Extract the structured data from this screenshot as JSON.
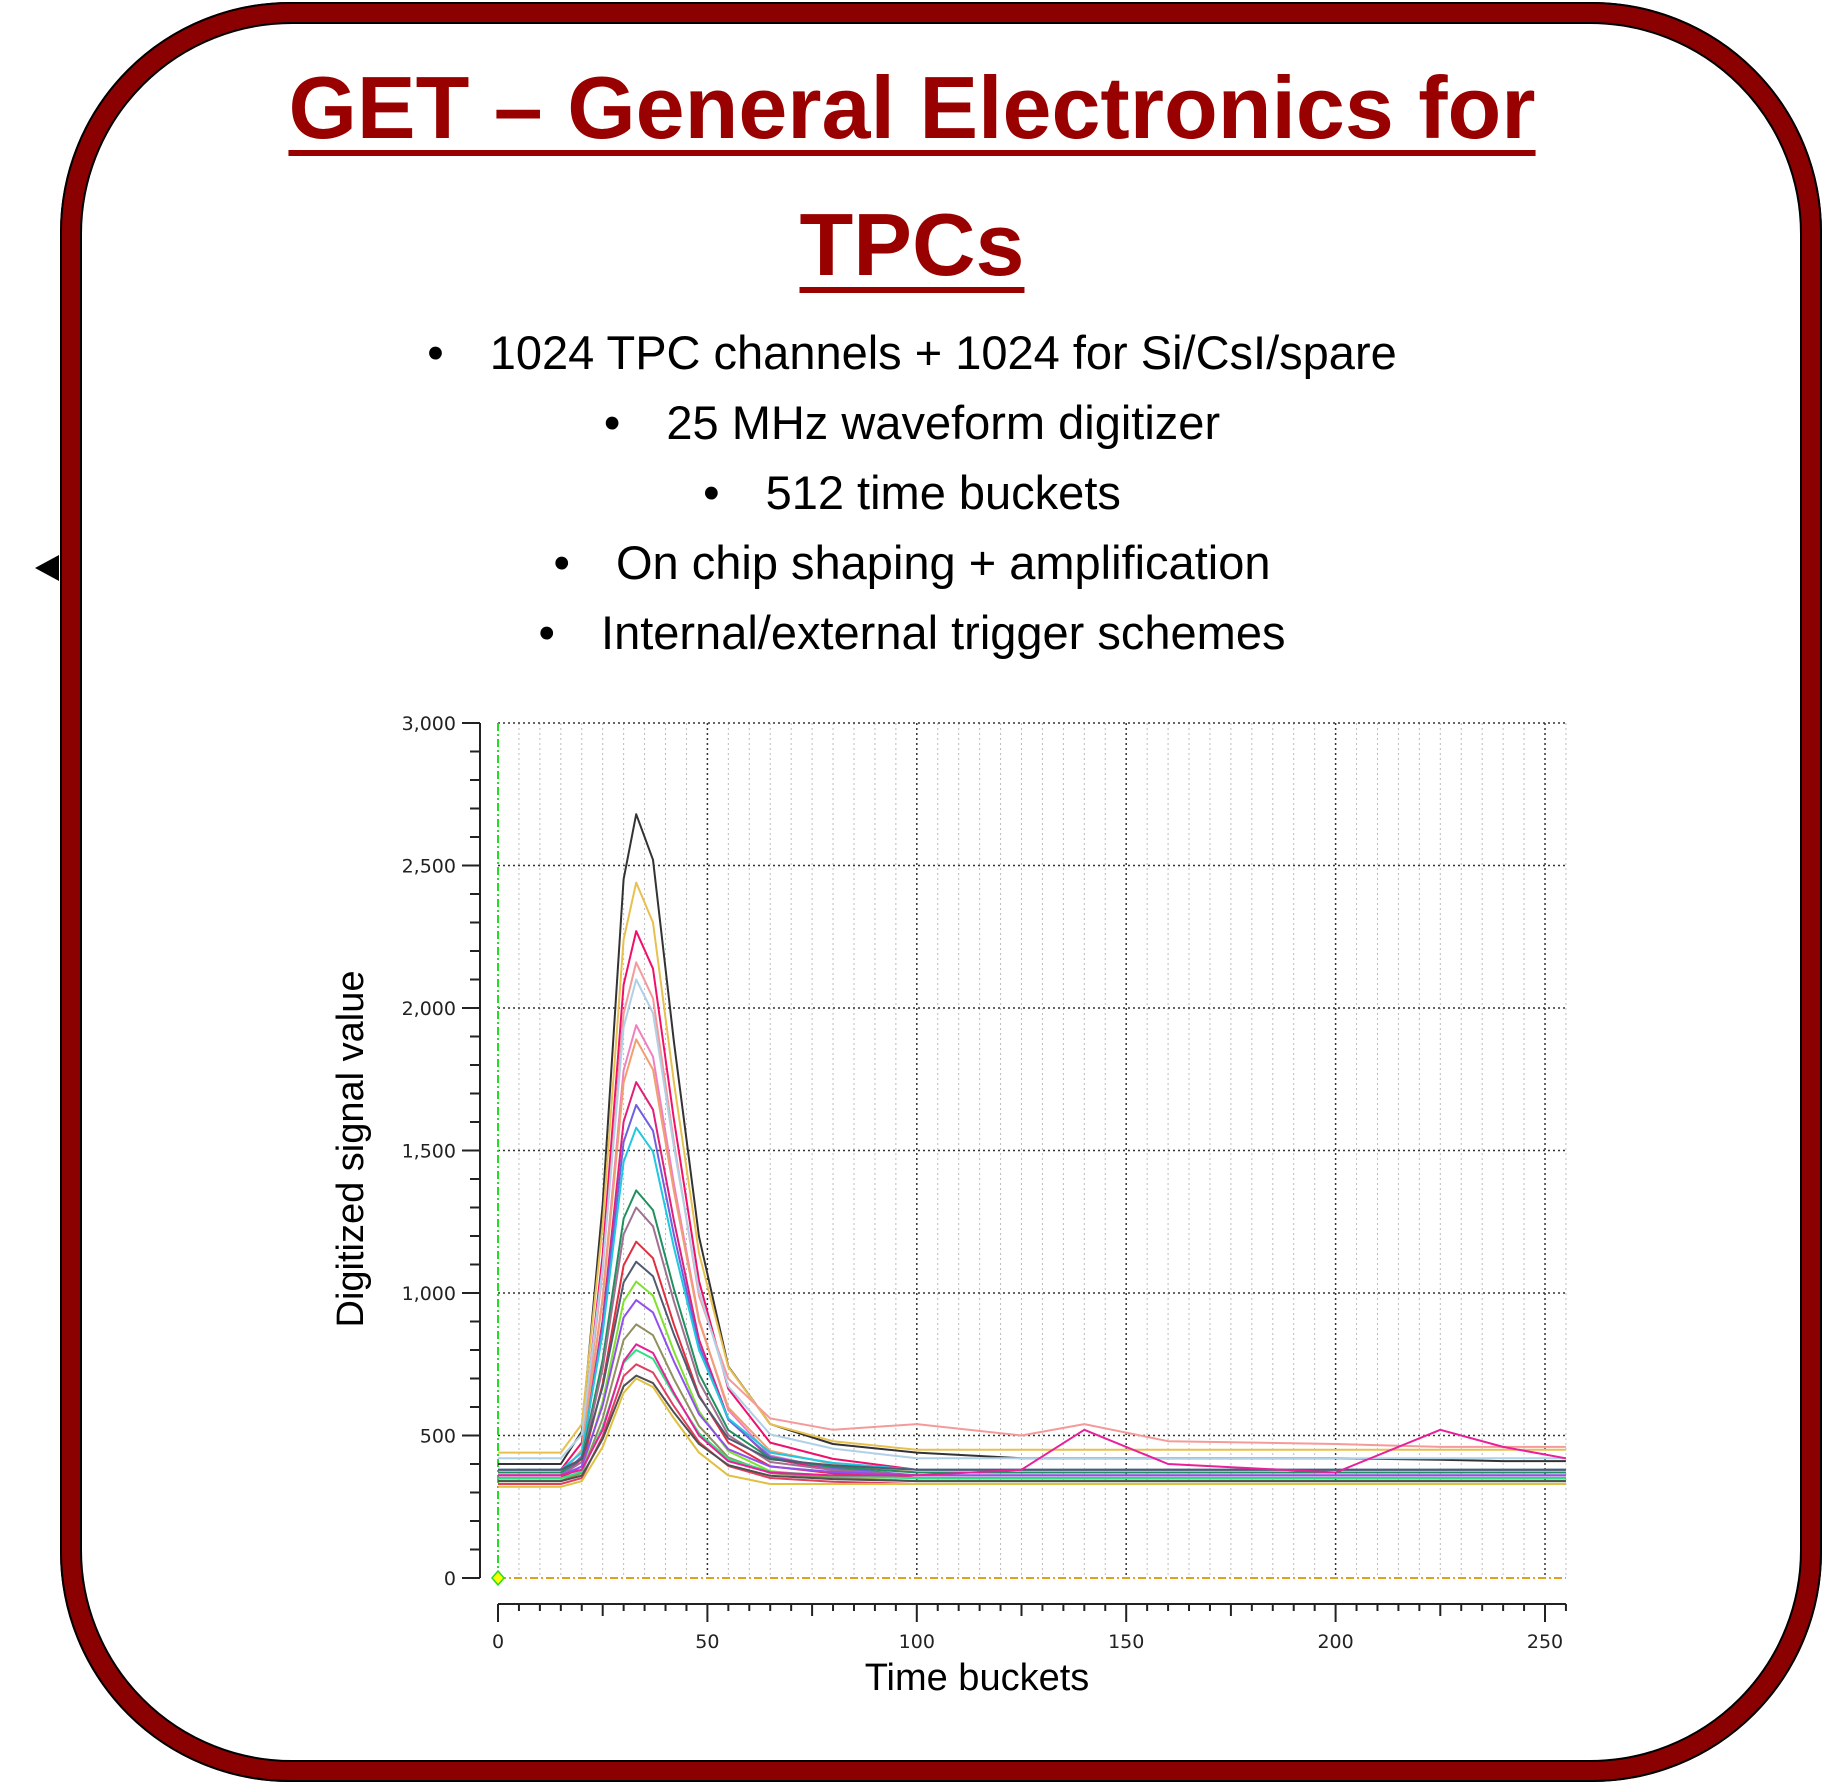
{
  "title": {
    "line1": "GET – General Electronics for",
    "line2": "TPCs"
  },
  "bullets": [
    "1024 TPC channels + 1024 for Si/CsI/spare",
    "25 MHz waveform digitizer",
    "512 time buckets",
    "On chip shaping + amplification",
    "Internal/external trigger schemes"
  ],
  "colors": {
    "frame": "#8b0000",
    "title": "#990000"
  },
  "chart_data": {
    "type": "line",
    "xlabel": "Time buckets",
    "ylabel": "Digitized signal value",
    "xlim": [
      0,
      255
    ],
    "ylim": [
      0,
      3000
    ],
    "xticks": [
      "0",
      "50",
      "100",
      "150",
      "200",
      "250"
    ],
    "yticks": [
      "0",
      "500",
      "1,000",
      "1,500",
      "2,000",
      "2,500",
      "3,000"
    ],
    "grid": true,
    "x": [
      0,
      15,
      20,
      25,
      30,
      33,
      37,
      42,
      48,
      55,
      65,
      80,
      100,
      125,
      140,
      160,
      200,
      225,
      240,
      255
    ],
    "series": [
      {
        "color": "#333333",
        "values": [
          400,
          400,
          514,
          1312,
          2452,
          2680,
          2520,
          1882,
          1198,
          742,
          540,
          470,
          440,
          420,
          420,
          420,
          420,
          415,
          410,
          410
        ]
      },
      {
        "color": "#e8c050",
        "values": [
          440,
          440,
          540,
          1240,
          2240,
          2440,
          2300,
          1740,
          1140,
          740,
          540,
          480,
          450,
          450,
          450,
          450,
          450,
          450,
          450,
          450
        ]
      },
      {
        "color": "#f0106a",
        "values": [
          380,
          380,
          475,
          1136,
          2081,
          2270,
          2138,
          1609,
          1042,
          664,
          475,
          418,
          380,
          380,
          380,
          380,
          380,
          380,
          380,
          380
        ]
      },
      {
        "color": "#f59a9a",
        "values": [
          360,
          360,
          450,
          1080,
          1980,
          2160,
          2034,
          1530,
          990,
          700,
          560,
          520,
          540,
          500,
          540,
          480,
          470,
          460,
          460,
          460
        ]
      },
      {
        "color": "#b0d0e8",
        "values": [
          420,
          420,
          504,
          1092,
          1932,
          2100,
          1982,
          1512,
          1008,
          672,
          504,
          454,
          420,
          420,
          420,
          420,
          420,
          420,
          420,
          420
        ]
      },
      {
        "color": "#f080c0",
        "values": [
          350,
          350,
          430,
          986,
          1781,
          1940,
          1829,
          1384,
          907,
          589,
          430,
          382,
          350,
          350,
          350,
          350,
          350,
          350,
          350,
          350
        ]
      },
      {
        "color": "#f0a070",
        "values": [
          370,
          370,
          446,
          978,
          1738,
          1890,
          1784,
          1358,
          902,
          598,
          446,
          400,
          370,
          370,
          370,
          370,
          370,
          370,
          370,
          370
        ]
      },
      {
        "color": "#e0207a",
        "values": [
          350,
          350,
          420,
          906,
          1601,
          1740,
          1643,
          1254,
          837,
          559,
          420,
          378,
          350,
          350,
          350,
          350,
          350,
          350,
          350,
          350
        ]
      },
      {
        "color": "#7060e0",
        "values": [
          360,
          360,
          425,
          880,
          1530,
          1660,
          1569,
          1205,
          815,
          555,
          425,
          386,
          360,
          360,
          360,
          360,
          360,
          360,
          360,
          360
        ]
      },
      {
        "color": "#20c8e0",
        "values": [
          380,
          380,
          440,
          860,
          1460,
          1580,
          1496,
          1160,
          800,
          560,
          440,
          404,
          380,
          380,
          380,
          380,
          380,
          380,
          380,
          380
        ]
      },
      {
        "color": "#209060",
        "values": [
          370,
          370,
          420,
          766,
          1261,
          1360,
          1291,
          1014,
          717,
          519,
          420,
          390,
          370,
          370,
          370,
          370,
          370,
          370,
          370,
          370
        ]
      },
      {
        "color": "#a07090",
        "values": [
          360,
          360,
          407,
          736,
          1206,
          1300,
          1234,
          971,
          689,
          501,
          407,
          379,
          360,
          360,
          360,
          360,
          360,
          360,
          360,
          360
        ]
      },
      {
        "color": "#e03040",
        "values": [
          350,
          350,
          392,
          682,
          1097,
          1180,
          1122,
          890,
          641,
          475,
          392,
          367,
          350,
          350,
          350,
          350,
          350,
          350,
          350,
          350
        ]
      },
      {
        "color": "#505a70",
        "values": [
          380,
          380,
          417,
          672,
          1037,
          1110,
          1059,
          855,
          636,
          490,
          417,
          395,
          380,
          380,
          380,
          380,
          380,
          380,
          380,
          380
        ]
      },
      {
        "color": "#80e030",
        "values": [
          340,
          340,
          375,
          620,
          970,
          1040,
          991,
          795,
          585,
          445,
          375,
          354,
          340,
          340,
          340,
          340,
          340,
          340,
          340,
          340
        ]
      },
      {
        "color": "#9050f0",
        "values": [
          360,
          360,
          391,
          606,
          914,
          975,
          932,
          760,
          575,
          452,
          391,
          372,
          360,
          360,
          360,
          360,
          360,
          360,
          360,
          360
        ]
      },
      {
        "color": "#909060",
        "values": [
          340,
          340,
          368,
          560,
          835,
          890,
          852,
          698,
          533,
          423,
          368,
          351,
          340,
          340,
          340,
          340,
          340,
          340,
          340,
          340
        ]
      },
      {
        "color": "#30e080",
        "values": [
          350,
          350,
          373,
          530,
          755,
          800,
          769,
          643,
          508,
          418,
          373,
          359,
          350,
          350,
          350,
          350,
          350,
          350,
          350,
          350
        ]
      },
      {
        "color": "#e04060",
        "values": [
          330,
          330,
          351,
          498,
          708,
          750,
          721,
          603,
          477,
          393,
          351,
          338,
          330,
          330,
          330,
          330,
          330,
          330,
          330,
          330
        ]
      },
      {
        "color": "#505050",
        "values": [
          340,
          340,
          359,
          488,
          673,
          710,
          684,
          581,
          470,
          396,
          359,
          347,
          340,
          340,
          340,
          340,
          340,
          340,
          340,
          340
        ]
      },
      {
        "color": "#e0c040",
        "values": [
          320,
          320,
          340,
          460,
          650,
          700,
          670,
          560,
          440,
          360,
          330,
          330,
          330,
          330,
          330,
          330,
          330,
          330,
          330,
          330
        ]
      },
      {
        "color": "#e8209a",
        "values": [
          360,
          360,
          380,
          520,
          760,
          820,
          790,
          650,
          500,
          410,
          370,
          360,
          360,
          380,
          520,
          400,
          370,
          520,
          460,
          420
        ]
      }
    ]
  }
}
